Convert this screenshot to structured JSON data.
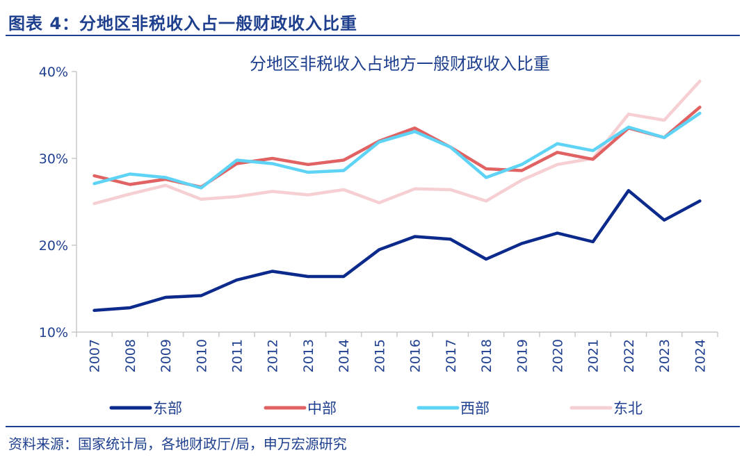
{
  "header": {
    "figure_title": "图表 4：分地区非税收入占一般财政收入比重"
  },
  "footer": {
    "source": "资料来源：国家统计局，各地财政厅/局，申万宏源研究"
  },
  "chart_data": {
    "type": "line",
    "title": "分地区非税收入占地方一般财政收入比重",
    "xlabel": "",
    "ylabel": "",
    "x": [
      "2007",
      "2008",
      "2009",
      "2010",
      "2011",
      "2012",
      "2013",
      "2014",
      "2015",
      "2016",
      "2017",
      "2018",
      "2019",
      "2020",
      "2021",
      "2022",
      "2023",
      "2024"
    ],
    "ylim": [
      10,
      40
    ],
    "yticks": [
      10,
      20,
      30,
      40
    ],
    "ytick_labels": [
      "10%",
      "20%",
      "30%",
      "40%"
    ],
    "grid": false,
    "legend_position": "bottom",
    "series": [
      {
        "name": "东部",
        "color": "#0b2a8c",
        "values": [
          12.5,
          12.8,
          14.0,
          14.2,
          16.0,
          17.0,
          16.4,
          16.4,
          19.5,
          21.0,
          20.7,
          18.4,
          20.2,
          21.4,
          20.4,
          26.3,
          22.9,
          25.1
        ]
      },
      {
        "name": "中部",
        "color": "#e06262",
        "values": [
          28.0,
          27.0,
          27.6,
          26.7,
          29.4,
          30.0,
          29.3,
          29.8,
          32.0,
          33.5,
          31.3,
          28.8,
          28.6,
          30.7,
          29.9,
          33.5,
          32.4,
          35.9
        ]
      },
      {
        "name": "西部",
        "color": "#5ed3f5",
        "values": [
          27.1,
          28.2,
          27.8,
          26.6,
          29.8,
          29.4,
          28.4,
          28.6,
          31.9,
          33.1,
          31.3,
          27.8,
          29.3,
          31.7,
          30.9,
          33.6,
          32.4,
          35.2
        ]
      },
      {
        "name": "东北",
        "color": "#f6cfd3",
        "values": [
          24.8,
          25.9,
          26.9,
          25.3,
          25.6,
          26.2,
          25.8,
          26.4,
          24.9,
          26.5,
          26.4,
          25.1,
          27.5,
          29.3,
          30.0,
          35.1,
          34.4,
          38.9
        ]
      }
    ]
  }
}
